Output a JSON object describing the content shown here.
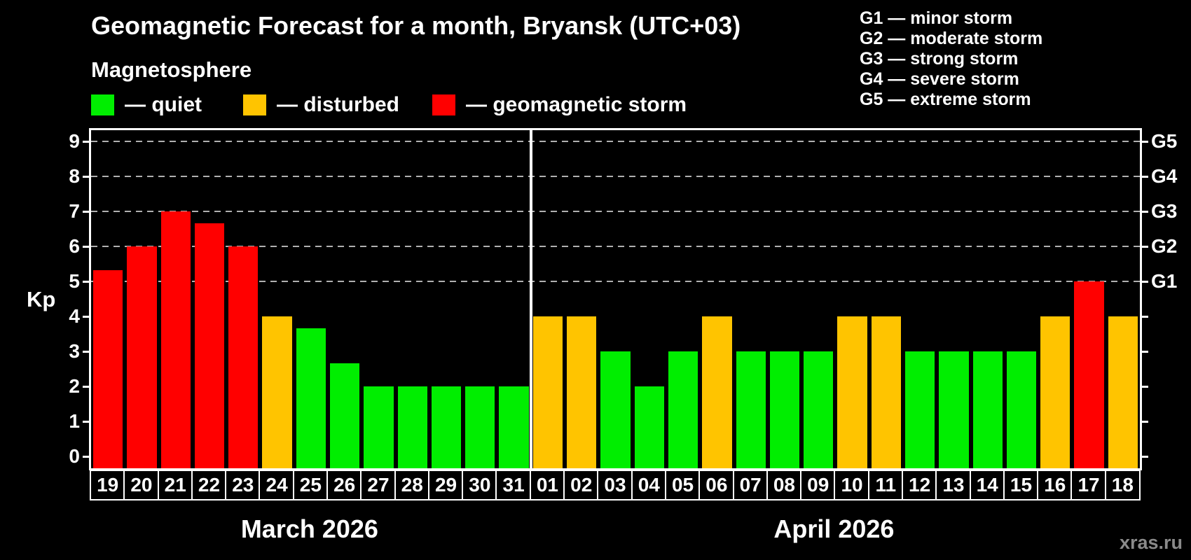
{
  "chart_data": {
    "type": "bar",
    "title": "Geomagnetic Forecast for a month, Bryansk (UTC+03)",
    "subtitle": "Magnetosphere",
    "ylabel": "Kp",
    "y_ticks": [
      0,
      1,
      2,
      3,
      4,
      5,
      6,
      7,
      8,
      9
    ],
    "ylim": [
      -0.32,
      9.38
    ],
    "grid_levels": [
      5,
      6,
      7,
      8,
      9
    ],
    "grid": "dashed horizontal lines at storm levels only",
    "legend_position": "top-left",
    "legend": [
      {
        "key": "quiet",
        "label": "— quiet"
      },
      {
        "key": "disturbed",
        "label": "— disturbed"
      },
      {
        "key": "storm",
        "label": "— geomagnetic storm"
      }
    ],
    "g_scale_legend": [
      "G1 — minor storm",
      "G2 — moderate storm",
      "G3 — strong storm",
      "G4 — severe storm",
      "G5 — extreme storm"
    ],
    "right_axis_labels": [
      {
        "label": "G5",
        "kp": 9
      },
      {
        "label": "G4",
        "kp": 8
      },
      {
        "label": "G3",
        "kp": 7
      },
      {
        "label": "G2",
        "kp": 6
      },
      {
        "label": "G1",
        "kp": 5
      }
    ],
    "thresholds": {
      "storm_min": 5,
      "disturbed_min": 4
    },
    "months": [
      {
        "label": "March 2026",
        "days": [
          "19",
          "20",
          "21",
          "22",
          "23",
          "24",
          "25",
          "26",
          "27",
          "28",
          "29",
          "30",
          "31"
        ],
        "values": [
          5.33,
          6,
          7,
          6.67,
          6,
          4,
          3.67,
          2.67,
          2,
          2,
          2,
          2,
          2
        ]
      },
      {
        "label": "April 2026",
        "days": [
          "01",
          "02",
          "03",
          "04",
          "05",
          "06",
          "07",
          "08",
          "09",
          "10",
          "11",
          "12",
          "13",
          "14",
          "15",
          "16",
          "17",
          "18"
        ],
        "values": [
          4,
          4,
          3,
          2,
          3,
          4,
          3,
          3,
          3,
          4,
          4,
          3,
          3,
          3,
          3,
          4,
          5,
          4
        ]
      }
    ]
  },
  "colors": {
    "quiet": "#00ee00",
    "disturbed": "#ffc400",
    "storm": "#ff0000",
    "grid": "#b0b0b0",
    "axis": "#ffffff",
    "watermark": "#8a8a8a"
  },
  "watermark": "xras.ru"
}
